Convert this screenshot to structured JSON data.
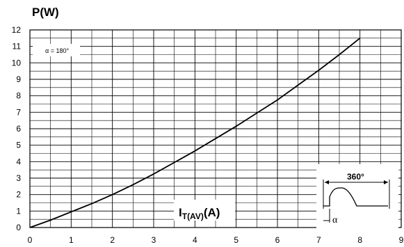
{
  "chart_data": {
    "type": "line",
    "ylabel": "P(W)",
    "xlabel": {
      "main": "I",
      "sub": "T(AV)",
      "unit": "(A)"
    },
    "xlim": [
      0,
      9
    ],
    "ylim": [
      0,
      12
    ],
    "x_ticks": [
      "0",
      "1",
      "2",
      "3",
      "4",
      "5",
      "6",
      "7",
      "8",
      "9"
    ],
    "y_ticks": [
      "0",
      "1",
      "2",
      "3",
      "4",
      "5",
      "6",
      "7",
      "8",
      "9",
      "10",
      "11",
      "12"
    ],
    "x_minor_step": 0.5,
    "y_minor_step": 0.5,
    "grid": true,
    "annotation": "α = 180°",
    "inset": {
      "period_label": "360°",
      "angle_label": "α"
    },
    "series": [
      {
        "x": [
          0,
          0.5,
          1,
          1.5,
          2,
          2.5,
          3,
          3.5,
          4,
          4.5,
          5,
          5.5,
          6,
          6.5,
          7,
          7.5,
          8
        ],
        "y": [
          0,
          0.45,
          0.95,
          1.45,
          2.0,
          2.6,
          3.25,
          3.95,
          4.65,
          5.4,
          6.15,
          6.95,
          7.75,
          8.65,
          9.55,
          10.5,
          11.5
        ]
      }
    ]
  }
}
